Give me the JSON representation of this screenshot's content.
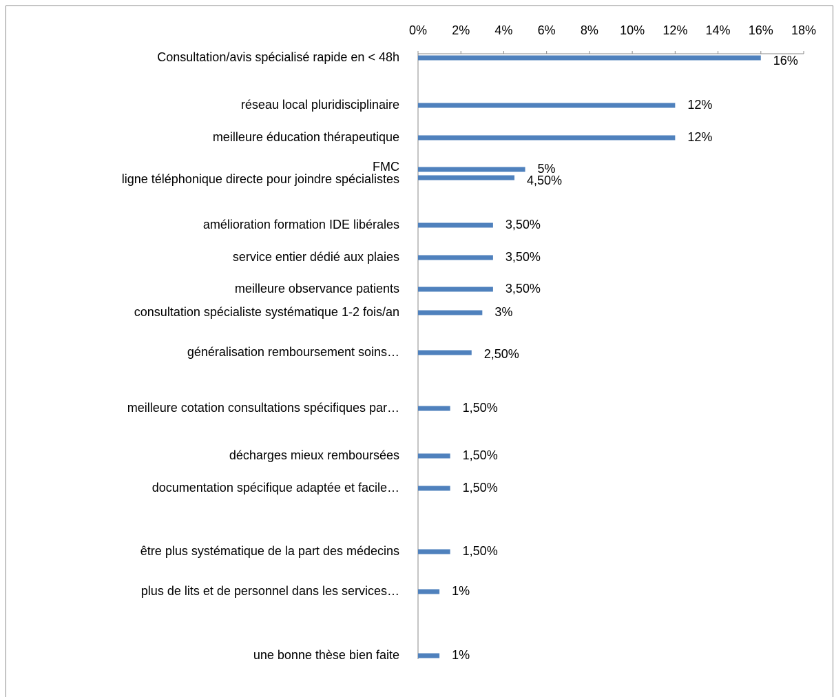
{
  "chart_data": {
    "type": "bar",
    "orientation": "horizontal",
    "categories": [
      "Consultation/avis spécialisé rapide en < 48h",
      "réseau local pluridisciplinaire",
      "meilleure éducation thérapeutique",
      "FMC",
      "ligne téléphonique directe pour joindre spécialistes",
      "amélioration formation IDE libérales",
      "service entier dédié aux plaies",
      "meilleure observance patients",
      "consultation spécialiste systématique 1-2 fois/an",
      "généralisation remboursement soins…",
      "meilleure cotation consultations spécifiques par…",
      "décharges mieux remboursées",
      "documentation spécifique adaptée et facile…",
      "être plus systématique de la part des médecins",
      "plus de lits et de personnel dans les services…",
      "une bonne thèse bien faite"
    ],
    "values": [
      16,
      12,
      12,
      5,
      4.5,
      3.5,
      3.5,
      3.5,
      3,
      2.5,
      1.5,
      1.5,
      1.5,
      1.5,
      1,
      1
    ],
    "value_labels": [
      "16%",
      "12%",
      "12%",
      "5%",
      "4,50%",
      "3,50%",
      "3,50%",
      "3,50%",
      "3%",
      "2,50%",
      "1,50%",
      "1,50%",
      "1,50%",
      "1,50%",
      "1%",
      "1%"
    ],
    "color": "#4f81bd",
    "xlim": [
      0,
      18
    ],
    "xticks": [
      {
        "value": 0,
        "label": "0%"
      },
      {
        "value": 2,
        "label": "2%"
      },
      {
        "value": 4,
        "label": "4%"
      },
      {
        "value": 6,
        "label": "6%"
      },
      {
        "value": 8,
        "label": "8%"
      },
      {
        "value": 10,
        "label": "10%"
      },
      {
        "value": 12,
        "label": "12%"
      },
      {
        "value": 14,
        "label": "14%"
      },
      {
        "value": 16,
        "label": "16%"
      },
      {
        "value": 18,
        "label": "18%"
      }
    ]
  }
}
